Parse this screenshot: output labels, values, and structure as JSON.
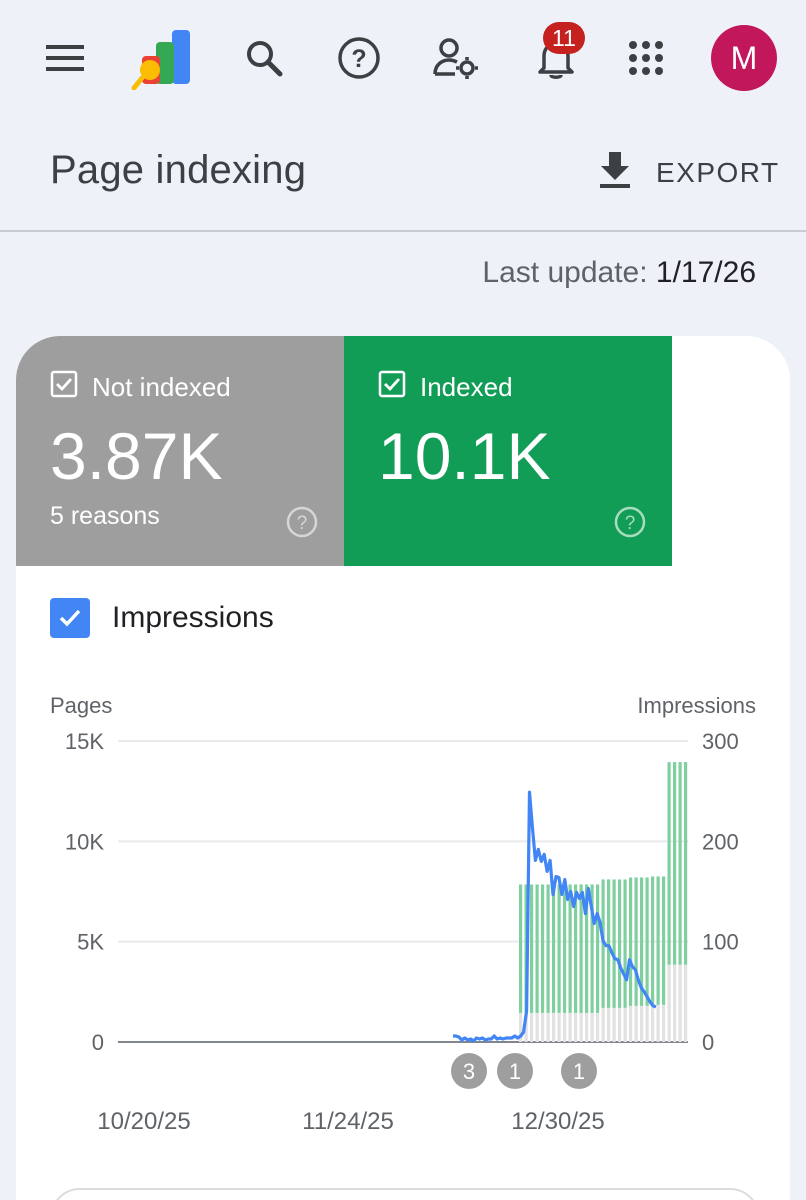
{
  "topbar": {
    "notification_count": "11",
    "avatar_letter": "M"
  },
  "header": {
    "title": "Page indexing",
    "export_label": "EXPORT"
  },
  "last_update": {
    "label": "Last update:",
    "date": "1/17/26"
  },
  "tiles": {
    "not_indexed": {
      "label": "Not indexed",
      "value": "3.87K",
      "sub": "5 reasons",
      "checked": true,
      "color": "#9e9e9e"
    },
    "indexed": {
      "label": "Indexed",
      "value": "10.1K",
      "checked": true,
      "color": "#129d57"
    }
  },
  "impressions_toggle": {
    "label": "Impressions",
    "checked": true
  },
  "chart_data": {
    "type": "bar",
    "left_axis_label": "Pages",
    "right_axis_label": "Impressions",
    "left_ticks": [
      "15K",
      "10K",
      "5K",
      "0"
    ],
    "right_ticks": [
      "300",
      "200",
      "100",
      "0"
    ],
    "ylim_left": [
      0,
      15000
    ],
    "ylim_right": [
      0,
      300
    ],
    "x_tick_labels": [
      "10/20/25",
      "11/24/25",
      "12/30/25"
    ],
    "colors": {
      "indexed": "#7fcf9f",
      "not_indexed": "#e2e2e2",
      "impressions": "#4285f4"
    },
    "series": [
      {
        "name": "Indexed",
        "values": [
          6400,
          6400,
          6400,
          6400,
          6400,
          6400,
          6400,
          6400,
          6400,
          6400,
          6400,
          6400,
          6400,
          6400,
          6400,
          6400,
          6400,
          6400,
          6400,
          6400,
          6400,
          6400,
          6400,
          6400,
          6400,
          6400,
          6400,
          10100,
          10100,
          10100,
          10100
        ]
      },
      {
        "name": "Not indexed",
        "values": [
          1450,
          1450,
          1450,
          1450,
          1450,
          1450,
          1450,
          1450,
          1450,
          1450,
          1450,
          1450,
          1450,
          1450,
          1450,
          1700,
          1700,
          1700,
          1700,
          1700,
          1800,
          1800,
          1800,
          1800,
          1850,
          1850,
          1850,
          3850,
          3850,
          3850,
          3850
        ]
      },
      {
        "name": "Impressions",
        "values": [
          6,
          6,
          5,
          2,
          4,
          2,
          3,
          1,
          4,
          3,
          4,
          2,
          3,
          3,
          6,
          3,
          4,
          3,
          4,
          4,
          4,
          6,
          4,
          6,
          10,
          31,
          249,
          214,
          181,
          192,
          180,
          187,
          170,
          181,
          147,
          165,
          164,
          147,
          162,
          142,
          150,
          135,
          149,
          143,
          149,
          128,
          153,
          135,
          118,
          128,
          119,
          101,
          96,
          96,
          89,
          83,
          82,
          74,
          68,
          62,
          82,
          75,
          72,
          62,
          54,
          50,
          45,
          40,
          36,
          35
        ]
      }
    ],
    "annotations": [
      "3",
      "1",
      "1"
    ]
  }
}
